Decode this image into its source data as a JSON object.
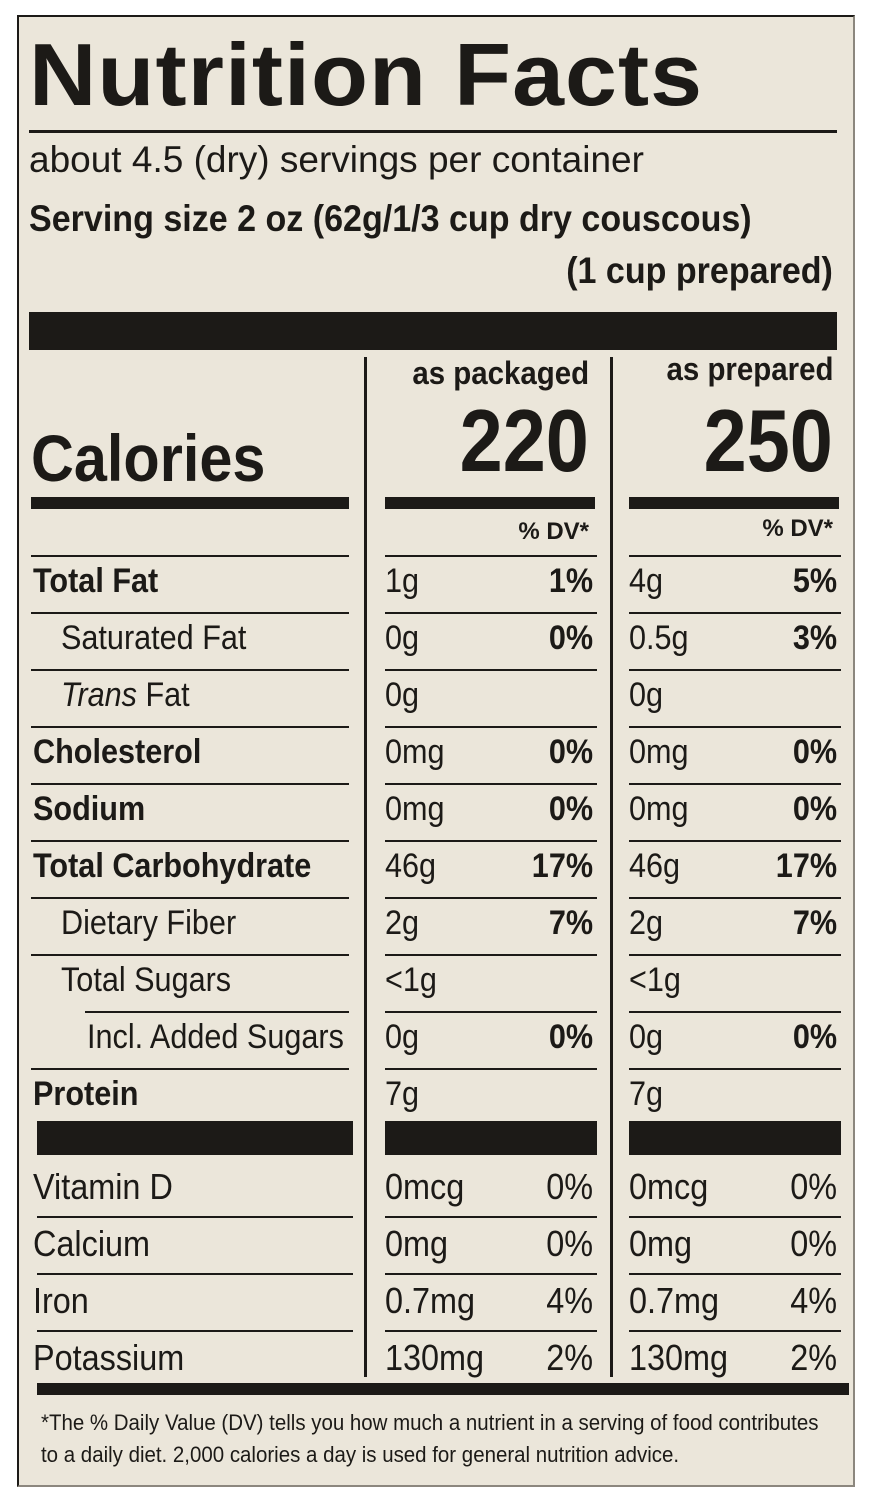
{
  "label": {
    "title": "Nutrition Facts",
    "servings_per_container": "about 4.5 (dry) servings per container",
    "serving_size_line1": "Serving size  2 oz (62g/1/3 cup dry couscous)",
    "serving_size_line2": "(1 cup prepared)",
    "columns": [
      {
        "heading": "as packaged",
        "calories": "220"
      },
      {
        "heading": "as prepared",
        "calories": "250"
      }
    ],
    "calories_label": "Calories",
    "dv_heading": "% DV*",
    "nutrients": [
      {
        "name": "Total Fat",
        "packaged_amount": "1g",
        "packaged_dv": "1%",
        "prepared_amount": "4g",
        "prepared_dv": "5%"
      },
      {
        "name": "Saturated Fat",
        "packaged_amount": "0g",
        "packaged_dv": "0%",
        "prepared_amount": "0.5g",
        "prepared_dv": "3%"
      },
      {
        "name_italic": "Trans",
        "name_rest": " Fat",
        "packaged_amount": "0g",
        "packaged_dv": "",
        "prepared_amount": "0g",
        "prepared_dv": ""
      },
      {
        "name": "Cholesterol",
        "packaged_amount": "0mg",
        "packaged_dv": "0%",
        "prepared_amount": "0mg",
        "prepared_dv": "0%"
      },
      {
        "name": "Sodium",
        "packaged_amount": "0mg",
        "packaged_dv": "0%",
        "prepared_amount": "0mg",
        "prepared_dv": "0%"
      },
      {
        "name": "Total Carbohydrate",
        "packaged_amount": "46g",
        "packaged_dv": "17%",
        "prepared_amount": "46g",
        "prepared_dv": "17%"
      },
      {
        "name": "Dietary Fiber",
        "packaged_amount": "2g",
        "packaged_dv": "7%",
        "prepared_amount": "2g",
        "prepared_dv": "7%"
      },
      {
        "name": "Total Sugars",
        "packaged_amount": "<1g",
        "packaged_dv": "",
        "prepared_amount": "<1g",
        "prepared_dv": ""
      },
      {
        "name": "Incl. Added Sugars",
        "packaged_amount": "0g",
        "packaged_dv": "0%",
        "prepared_amount": "0g",
        "prepared_dv": "0%"
      },
      {
        "name": "Protein",
        "packaged_amount": "7g",
        "packaged_dv": "",
        "prepared_amount": "7g",
        "prepared_dv": ""
      }
    ],
    "vitamins": [
      {
        "name": "Vitamin D",
        "packaged_amount": "0mcg",
        "packaged_dv": "0%",
        "prepared_amount": "0mcg",
        "prepared_dv": "0%"
      },
      {
        "name": "Calcium",
        "packaged_amount": "0mg",
        "packaged_dv": "0%",
        "prepared_amount": "0mg",
        "prepared_dv": "0%"
      },
      {
        "name": "Iron",
        "packaged_amount": "0.7mg",
        "packaged_dv": "4%",
        "prepared_amount": "0.7mg",
        "prepared_dv": "4%"
      },
      {
        "name": "Potassium",
        "packaged_amount": "130mg",
        "packaged_dv": "2%",
        "prepared_amount": "130mg",
        "prepared_dv": "2%"
      }
    ],
    "footnote_line1": "*The % Daily Value (DV) tells you how much a nutrient in a serving of food contributes",
    "footnote_line2": "to a daily diet. 2,000 calories a day is used for general nutrition advice."
  }
}
